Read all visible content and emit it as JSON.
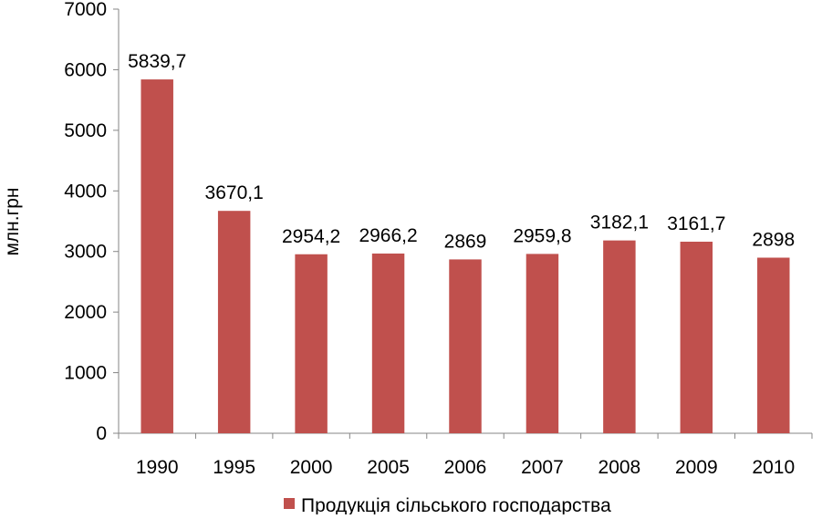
{
  "chart_data": {
    "type": "bar",
    "title": "",
    "xlabel": "",
    "ylabel": "млн.грн",
    "ylim": [
      0,
      7000
    ],
    "yticks": [
      0,
      1000,
      2000,
      3000,
      4000,
      5000,
      6000,
      7000
    ],
    "ytick_labels": [
      "0",
      "1000",
      "2000",
      "3000",
      "4000",
      "5000",
      "6000",
      "7000"
    ],
    "categories": [
      "1990",
      "1995",
      "2000",
      "2005",
      "2006",
      "2007",
      "2008",
      "2009",
      "2010"
    ],
    "series": [
      {
        "name": "Продукція сільського господарства",
        "values": [
          5839.7,
          3670.1,
          2954.2,
          2966.2,
          2869,
          2959.8,
          3182.1,
          3161.7,
          2898
        ],
        "data_labels": [
          "5839,7",
          "3670,1",
          "2954,2",
          "2966,2",
          "2869",
          "2959,8",
          "3182,1",
          "3161,7",
          "2898"
        ],
        "color": "#c0504d"
      }
    ],
    "grid": false,
    "legend_position": "bottom"
  }
}
